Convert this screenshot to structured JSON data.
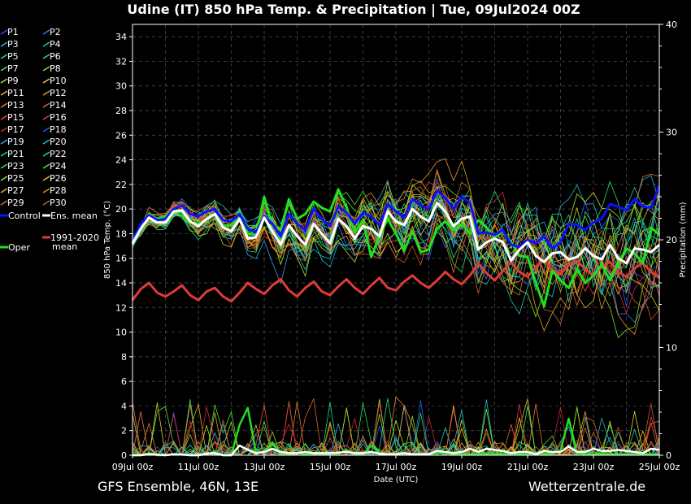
{
  "title": "Udine  (IT)  850 hPa Temp. & Precipitation | Tue, 09Jul2024 00Z",
  "footer_left": "GFS Ensemble, 46N, 13E",
  "footer_right": "Wetterzentrale.de",
  "colors": {
    "background": "#000000",
    "members": [
      "#3a4dff",
      "#2e7bff",
      "#23b4d6",
      "#1ec8b8",
      "#20d890",
      "#2fe06a",
      "#48e040",
      "#7fe030",
      "#b8e02a",
      "#e0d030",
      "#e0b030",
      "#e09a30",
      "#e07a30",
      "#e06030",
      "#e04a30",
      "#e03838",
      "#d02838",
      "#2a5cff",
      "#3aa0e8",
      "#22c0c0",
      "#18d0a0",
      "#1ee078",
      "#30e050",
      "#60e030",
      "#a8d82a",
      "#d8c828",
      "#e0a828",
      "#e08828",
      "#d86a30",
      "#c85a28"
    ],
    "control": "#1010ff",
    "ens_mean": "#ffffff",
    "oper": "#20e020",
    "clim_mean": "#e03a3a"
  },
  "legend": {
    "members": [
      "P1",
      "P2",
      "P3",
      "P4",
      "P5",
      "P6",
      "P7",
      "P8",
      "P9",
      "P10",
      "P11",
      "P12",
      "P13",
      "P14",
      "P15",
      "P16",
      "P17",
      "P18",
      "P19",
      "P20",
      "P21",
      "P22",
      "P23",
      "P24",
      "P25",
      "P26",
      "P27",
      "P28",
      "P29",
      "P30"
    ],
    "control": "Control",
    "ens_mean": "Ens. mean",
    "oper": "Oper",
    "clim_mean_line1": "1991-2020",
    "clim_mean_line2": "mean"
  },
  "chart_data": {
    "type": "line",
    "title": "Udine  (IT)  850 hPa Temp. & Precipitation | Tue, 09Jul2024 00Z",
    "xlabel": "Date (UTC)",
    "ylabel": "850 hPa Temp. (°C)",
    "y2label": "Precipitation (mm)",
    "x_start": "09Jul 00z",
    "x_end": "25Jul 00z",
    "x_step_hours": 6,
    "x_ticks": [
      "09Jul 00z",
      "11Jul 00z",
      "13Jul 00z",
      "15Jul 00z",
      "17Jul 00z",
      "19Jul 00z",
      "21Jul 00z",
      "23Jul 00z",
      "25Jul 00z"
    ],
    "ylim": [
      0,
      35
    ],
    "y_ticks": [
      0,
      2,
      4,
      6,
      8,
      10,
      12,
      14,
      16,
      18,
      20,
      22,
      24,
      26,
      28,
      30,
      32,
      34
    ],
    "y2lim": [
      0,
      40
    ],
    "y2_ticks": [
      0,
      10,
      20,
      30,
      40
    ],
    "grid": true,
    "legend_position": "left outside",
    "series": [
      {
        "name": "Ens. mean",
        "values": [
          17.2,
          18.4,
          19.3,
          18.9,
          18.9,
          19.8,
          19.9,
          19.0,
          18.6,
          19.2,
          19.6,
          18.5,
          18.2,
          19.2,
          17.6,
          17.7,
          19.3,
          18.2,
          17.1,
          18.7,
          17.8,
          17.1,
          18.8,
          18.0,
          17.2,
          19.2,
          18.6,
          17.6,
          18.6,
          18.4,
          17.8,
          19.8,
          19.0,
          18.7,
          20.0,
          19.4,
          19.0,
          20.5,
          19.8,
          18.6,
          19.2,
          19.4,
          16.7,
          17.3,
          17.6,
          17.3,
          15.8,
          16.7,
          17.3,
          16.2,
          15.7,
          16.4,
          16.5,
          15.9,
          16.1,
          16.8,
          16.2,
          15.9,
          17.1,
          16.0,
          15.6,
          16.8,
          16.7,
          16.5,
          17.1
        ]
      },
      {
        "name": "Control",
        "values": [
          17.3,
          18.8,
          19.5,
          19.1,
          19.2,
          20.0,
          20.3,
          19.6,
          19.4,
          19.8,
          20.0,
          19.1,
          19.0,
          19.6,
          18.4,
          18.1,
          19.4,
          18.8,
          17.8,
          19.6,
          18.8,
          18.3,
          20.0,
          19.2,
          18.6,
          20.2,
          19.7,
          18.8,
          19.7,
          19.4,
          18.7,
          20.4,
          19.8,
          19.3,
          20.8,
          20.3,
          20.0,
          21.5,
          20.9,
          20.0,
          21.0,
          20.5,
          18.0,
          18.1,
          17.9,
          18.3,
          17.1,
          16.9,
          17.5,
          17.2,
          17.8,
          16.8,
          17.3,
          18.8,
          18.7,
          18.3,
          18.9,
          19.2,
          20.4,
          20.2,
          19.9,
          20.8,
          20.2,
          20.1,
          21.9
        ]
      },
      {
        "name": "Oper",
        "values": [
          17.1,
          18.6,
          19.6,
          19.2,
          19.4,
          20.0,
          19.7,
          18.9,
          18.8,
          19.1,
          19.6,
          18.6,
          18.7,
          19.8,
          18.0,
          17.9,
          21.0,
          18.6,
          18.3,
          20.8,
          19.2,
          19.6,
          20.6,
          20.1,
          19.8,
          21.6,
          20.1,
          18.1,
          19.1,
          16.1,
          17.8,
          19.2,
          18.0,
          16.6,
          18.2,
          16.5,
          16.7,
          18.4,
          19.0,
          18.3,
          18.8,
          18.0,
          19.1,
          18.5,
          17.7,
          18.2,
          17.3,
          16.2,
          16.1,
          14.0,
          12.1,
          15.0,
          14.2,
          13.6,
          15.1,
          14.0,
          14.6,
          15.5,
          14.2,
          15.6,
          16.8,
          16.4,
          15.6,
          18.5,
          17.9
        ]
      },
      {
        "name": "1991-2020 mean",
        "values": [
          12.6,
          13.5,
          14.0,
          13.2,
          12.9,
          13.3,
          13.8,
          13.0,
          12.6,
          13.3,
          13.6,
          12.9,
          12.5,
          13.2,
          14.0,
          13.5,
          13.1,
          13.8,
          14.3,
          13.4,
          12.9,
          13.6,
          14.1,
          13.3,
          13.0,
          13.7,
          14.3,
          13.6,
          13.1,
          13.8,
          14.4,
          13.6,
          13.4,
          14.1,
          14.6,
          14.0,
          13.6,
          14.2,
          14.9,
          14.3,
          13.9,
          14.6,
          15.6,
          14.8,
          14.2,
          15.0,
          15.7,
          14.9,
          14.5,
          15.3,
          15.9,
          15.0,
          14.7,
          15.5,
          15.8,
          15.1,
          14.6,
          15.3,
          15.7,
          14.9,
          14.5,
          15.2,
          15.6,
          14.9,
          14.4
        ]
      },
      {
        "name": "Precip Ens. mean",
        "axis": "right",
        "values": [
          0,
          0,
          0.1,
          0.05,
          0,
          0.1,
          0.05,
          0,
          0,
          0.15,
          0.2,
          0,
          0,
          0.9,
          0.5,
          0.2,
          0.3,
          0.6,
          0.3,
          0.2,
          0.2,
          0.3,
          0.2,
          0.2,
          0.2,
          0.25,
          0.3,
          0.2,
          0.2,
          0.3,
          0.15,
          0.1,
          0.1,
          0.2,
          0.1,
          0.1,
          0.1,
          0.4,
          0.3,
          0.2,
          0.3,
          0.6,
          0.3,
          0.6,
          0.5,
          0.4,
          0.2,
          0.3,
          0.3,
          0.1,
          0.4,
          0.3,
          0.3,
          0.8,
          0.3,
          0.3,
          0.6,
          0.4,
          0.4,
          0.5,
          0.4,
          0.3,
          0.2,
          0.6,
          0.5
        ]
      },
      {
        "name": "Precip Oper",
        "axis": "right",
        "values": [
          0,
          0,
          0.2,
          0,
          0,
          0.1,
          0.1,
          0,
          0,
          0.1,
          0.3,
          0,
          0,
          2.8,
          4.4,
          0.2,
          0.3,
          1.2,
          0.2,
          0.1,
          0.2,
          0.1,
          0.2,
          0.1,
          0.1,
          0.1,
          0.5,
          0.1,
          0.1,
          0.9,
          0.2,
          0.1,
          0.1,
          0.1,
          0.1,
          0.1,
          0.1,
          0.2,
          0.2,
          0.1,
          0.1,
          0.1,
          0.1,
          0.2,
          0.1,
          0.1,
          0.1,
          0.1,
          0.1,
          0.2,
          0.1,
          0.2,
          0.4,
          3.4,
          0.2,
          0.1,
          0.1,
          0.2,
          0.1,
          0.1,
          0.1,
          0.1,
          0.1,
          0.1,
          0.1
        ]
      }
    ]
  }
}
